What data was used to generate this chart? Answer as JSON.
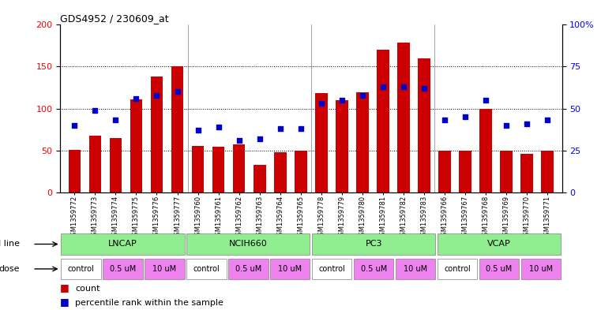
{
  "title": "GDS4952 / 230609_at",
  "samples": [
    "GSM1359772",
    "GSM1359773",
    "GSM1359774",
    "GSM1359775",
    "GSM1359776",
    "GSM1359777",
    "GSM1359760",
    "GSM1359761",
    "GSM1359762",
    "GSM1359763",
    "GSM1359764",
    "GSM1359765",
    "GSM1359778",
    "GSM1359779",
    "GSM1359780",
    "GSM1359781",
    "GSM1359782",
    "GSM1359783",
    "GSM1359766",
    "GSM1359767",
    "GSM1359768",
    "GSM1359769",
    "GSM1359770",
    "GSM1359771"
  ],
  "counts": [
    51,
    68,
    65,
    111,
    138,
    150,
    55,
    54,
    57,
    33,
    48,
    50,
    118,
    110,
    119,
    170,
    179,
    160,
    50,
    50,
    100,
    50,
    46,
    50
  ],
  "percentile_ranks": [
    40,
    49,
    43,
    56,
    58,
    60,
    37,
    39,
    31,
    32,
    38,
    38,
    53,
    55,
    58,
    63,
    63,
    62,
    43,
    45,
    55,
    40,
    41,
    43
  ],
  "cell_line_data": [
    {
      "name": "LNCAP",
      "start": 0,
      "end": 6
    },
    {
      "name": "NCIH660",
      "start": 6,
      "end": 12
    },
    {
      "name": "PC3",
      "start": 12,
      "end": 18
    },
    {
      "name": "VCAP",
      "start": 18,
      "end": 24
    }
  ],
  "dose_data": [
    {
      "name": "control",
      "start": 0,
      "end": 2,
      "color": "#ffffff"
    },
    {
      "name": "0.5 uM",
      "start": 2,
      "end": 4,
      "color": "#EE82EE"
    },
    {
      "name": "10 uM",
      "start": 4,
      "end": 6,
      "color": "#EE82EE"
    },
    {
      "name": "control",
      "start": 6,
      "end": 8,
      "color": "#ffffff"
    },
    {
      "name": "0.5 uM",
      "start": 8,
      "end": 10,
      "color": "#EE82EE"
    },
    {
      "name": "10 uM",
      "start": 10,
      "end": 12,
      "color": "#EE82EE"
    },
    {
      "name": "control",
      "start": 12,
      "end": 14,
      "color": "#ffffff"
    },
    {
      "name": "0.5 uM",
      "start": 14,
      "end": 16,
      "color": "#EE82EE"
    },
    {
      "name": "10 uM",
      "start": 16,
      "end": 18,
      "color": "#EE82EE"
    },
    {
      "name": "control",
      "start": 18,
      "end": 20,
      "color": "#ffffff"
    },
    {
      "name": "0.5 uM",
      "start": 20,
      "end": 22,
      "color": "#EE82EE"
    },
    {
      "name": "10 uM",
      "start": 22,
      "end": 24,
      "color": "#EE82EE"
    }
  ],
  "cell_line_color": "#90EE90",
  "bar_color": "#CC0000",
  "dot_color": "#0000CC",
  "ylim_left": [
    0,
    200
  ],
  "ylim_right": [
    0,
    100
  ],
  "yticks_left": [
    0,
    50,
    100,
    150,
    200
  ],
  "yticks_right": [
    0,
    25,
    50,
    75,
    100
  ],
  "grid_values": [
    50,
    100,
    150
  ],
  "background_color": "#ffffff"
}
